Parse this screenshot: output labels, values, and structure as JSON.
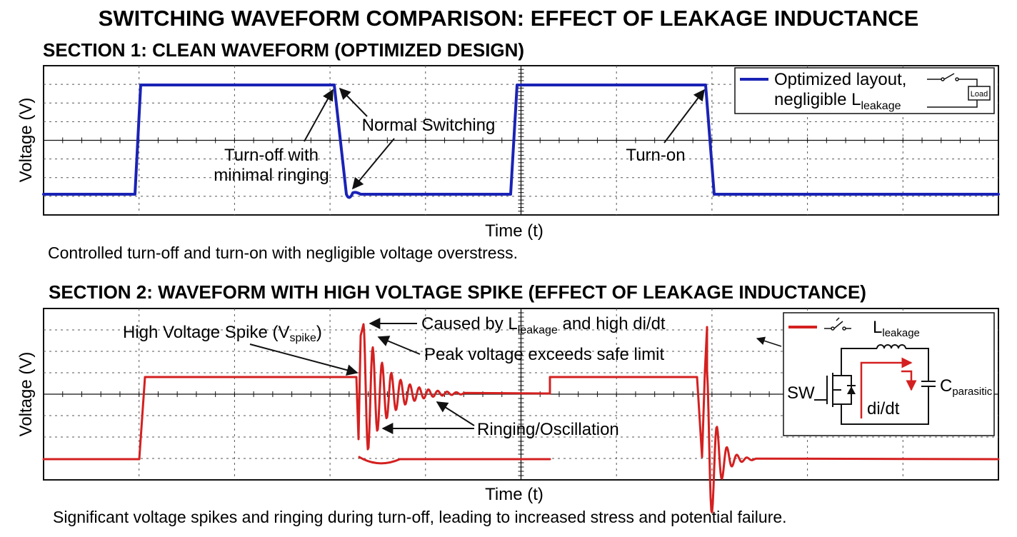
{
  "title": "SWITCHING WAVEFORM COMPARISON: EFFECT OF LEAKAGE INDUCTANCE",
  "section1": {
    "heading": "SECTION 1: CLEAN WAVEFORM (OPTIMIZED DESIGN)",
    "ylabel": "Voltage (V)",
    "xlabel": "Time (t)",
    "caption": "Controlled turn-off and turn-on with negligible voltage overstress.",
    "trace_color": "#1a23b5",
    "annotations": {
      "turn_off_line1": "Turn-off with",
      "turn_off_line2": "minimal ringing",
      "normal_switching": "Normal Switching",
      "turn_on": "Turn-on"
    },
    "legend": {
      "line1": "Optimized layout,",
      "line2_prefix": "negligible L",
      "line2_sub": "leakage",
      "load_label": "Load"
    }
  },
  "section2": {
    "heading": "SECTION 2: WAVEFORM WITH HIGH VOLTAGE SPIKE (EFFECT OF LEAKAGE INDUCTANCE)",
    "ylabel": "Voltage (V)",
    "xlabel": "Time (t)",
    "caption": "Significant voltage spikes and ringing during turn-off, leading to increased stress and potential failure.",
    "trace_color": "#d42020",
    "annotations": {
      "spike_prefix": "High Voltage Spike (V",
      "spike_sub": "spike",
      "spike_suffix": ")",
      "caused_prefix": "Caused by L",
      "caused_sub": "leakage",
      "caused_suffix": " and high di/dt",
      "peak": "Peak voltage exceeds safe limit",
      "ringing": "Ringing/Oscillation"
    },
    "circuit": {
      "l_prefix": "L",
      "l_sub": "leakage",
      "c_prefix": "C",
      "c_sub": "parasitic",
      "sw_label": "SW",
      "didt_label": "di/dt"
    }
  }
}
